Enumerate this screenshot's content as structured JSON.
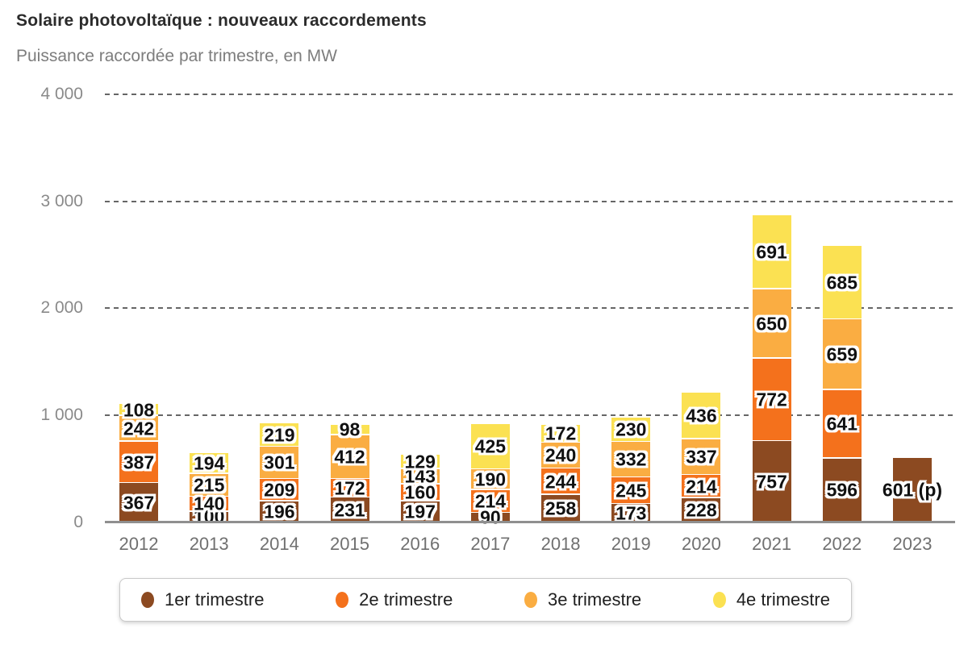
{
  "header": {
    "title": "Solaire photovoltaïque : nouveaux raccordements",
    "subtitle": "Puissance raccordée par trimestre, en MW"
  },
  "chart_data": {
    "type": "bar",
    "stacked": true,
    "unit": "MW",
    "title": "Solaire photovoltaïque : nouveaux raccordements",
    "subtitle": "Puissance raccordée par trimestre, en MW",
    "categories": [
      "2012",
      "2013",
      "2014",
      "2015",
      "2016",
      "2017",
      "2018",
      "2019",
      "2020",
      "2021",
      "2022",
      "2023"
    ],
    "series": [
      {
        "name": "1er trimestre",
        "color": "#8C4A21",
        "values": [
          367,
          100,
          196,
          231,
          197,
          90,
          258,
          173,
          228,
          757,
          596,
          601
        ],
        "labels": [
          "367",
          "100",
          "196",
          "231",
          "197",
          "90",
          "258",
          "173",
          "228",
          "757",
          "596",
          "601 (p)"
        ]
      },
      {
        "name": "2e trimestre",
        "color": "#F4711C",
        "values": [
          387,
          140,
          209,
          172,
          160,
          214,
          244,
          245,
          214,
          772,
          641,
          null
        ],
        "labels": [
          "387",
          "140",
          "209",
          "172",
          "160",
          "214",
          "244",
          "245",
          "214",
          "772",
          "641",
          null
        ]
      },
      {
        "name": "3e trimestre",
        "color": "#FAAD42",
        "values": [
          242,
          215,
          301,
          412,
          143,
          190,
          240,
          332,
          337,
          650,
          659,
          null
        ],
        "labels": [
          "242",
          "215",
          "301",
          "412",
          "143",
          "190",
          "240",
          "332",
          "337",
          "650",
          "659",
          null
        ]
      },
      {
        "name": "4e trimestre",
        "color": "#FBE152",
        "values": [
          108,
          194,
          219,
          98,
          129,
          425,
          172,
          230,
          436,
          691,
          685,
          null
        ],
        "labels": [
          "108",
          "194",
          "219",
          "98",
          "129",
          "425",
          "172",
          "230",
          "436",
          "691",
          "685",
          null
        ]
      }
    ],
    "y_ticks": [
      {
        "label": "4 000",
        "value": 4000
      },
      {
        "label": "3 000",
        "value": 3000
      },
      {
        "label": "2 000",
        "value": 2000
      },
      {
        "label": "1 000",
        "value": 1000
      },
      {
        "label": "0",
        "value": 0
      }
    ],
    "ylim": [
      0,
      4000
    ],
    "gridlines": "dashed",
    "legend_position": "bottom",
    "provisional_note": "(p)"
  },
  "legend": {
    "items": [
      {
        "label": "1er trimestre",
        "color": "#8C4A21"
      },
      {
        "label": "2e trimestre",
        "color": "#F4711C"
      },
      {
        "label": "3e trimestre",
        "color": "#FAAD42"
      },
      {
        "label": "4e trimestre",
        "color": "#FBE152"
      }
    ]
  }
}
